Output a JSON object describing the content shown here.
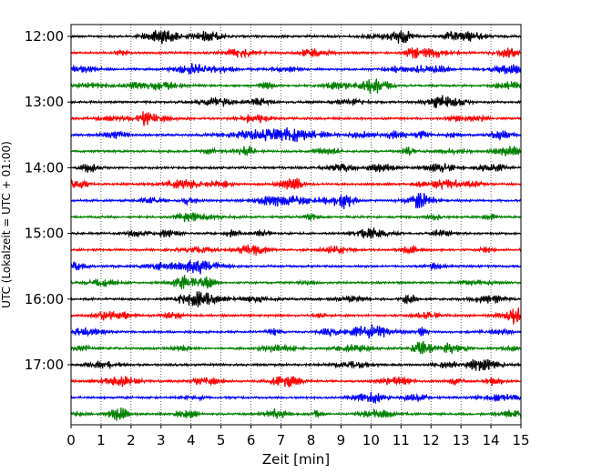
{
  "chart_data": {
    "type": "line",
    "title": "",
    "xlabel": "Zeit  [min]",
    "ylabel": "UTC (Lokalzeit = UTC + 01:00)",
    "xlim": [
      0,
      15
    ],
    "x_ticks": [
      "0",
      "1",
      "2",
      "3",
      "4",
      "5",
      "6",
      "7",
      "8",
      "9",
      "10",
      "11",
      "12",
      "13",
      "14",
      "15"
    ],
    "y_tick_labels": [
      "12:00",
      "13:00",
      "14:00",
      "15:00",
      "16:00",
      "17:00"
    ],
    "grid": "vertical dotted",
    "trace_interval_min": 15,
    "trace_colors": [
      "#000000",
      "#ff0000",
      "#0000ff",
      "#008000"
    ],
    "traces": [
      {
        "start": "12:00",
        "color": "#000000"
      },
      {
        "start": "12:15",
        "color": "#ff0000"
      },
      {
        "start": "12:30",
        "color": "#0000ff"
      },
      {
        "start": "12:45",
        "color": "#008000"
      },
      {
        "start": "13:00",
        "color": "#000000"
      },
      {
        "start": "13:15",
        "color": "#ff0000"
      },
      {
        "start": "13:30",
        "color": "#0000ff"
      },
      {
        "start": "13:45",
        "color": "#008000"
      },
      {
        "start": "14:00",
        "color": "#000000"
      },
      {
        "start": "14:15",
        "color": "#ff0000"
      },
      {
        "start": "14:30",
        "color": "#0000ff"
      },
      {
        "start": "14:45",
        "color": "#008000"
      },
      {
        "start": "15:00",
        "color": "#000000"
      },
      {
        "start": "15:15",
        "color": "#ff0000"
      },
      {
        "start": "15:30",
        "color": "#0000ff"
      },
      {
        "start": "15:45",
        "color": "#008000"
      },
      {
        "start": "16:00",
        "color": "#000000"
      },
      {
        "start": "16:15",
        "color": "#ff0000"
      },
      {
        "start": "16:30",
        "color": "#0000ff"
      },
      {
        "start": "16:45",
        "color": "#008000"
      },
      {
        "start": "17:00",
        "color": "#000000"
      },
      {
        "start": "17:15",
        "color": "#ff0000"
      },
      {
        "start": "17:30",
        "color": "#0000ff"
      },
      {
        "start": "17:45",
        "color": "#008000"
      }
    ]
  }
}
